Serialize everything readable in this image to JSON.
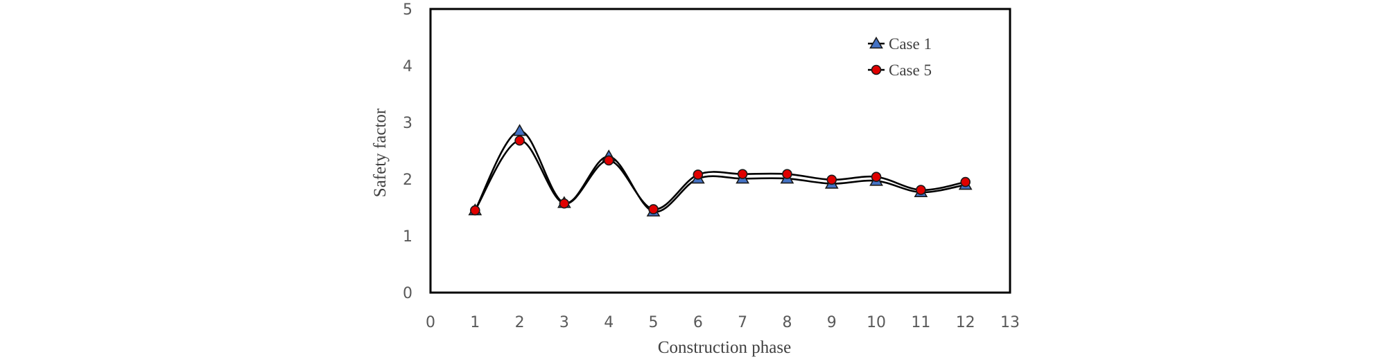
{
  "chart_data": {
    "type": "line",
    "title": "",
    "xlabel": "Construction phase",
    "ylabel": "Safety factor",
    "xlim": [
      0,
      13
    ],
    "ylim": [
      0,
      5
    ],
    "x_ticks": [
      "0",
      "1",
      "2",
      "3",
      "4",
      "5",
      "6",
      "7",
      "8",
      "9",
      "10",
      "11",
      "12",
      "13"
    ],
    "y_ticks": [
      "0",
      "1",
      "2",
      "3",
      "4",
      "5"
    ],
    "grid": false,
    "legend_position": "top-right",
    "x": [
      1,
      2,
      3,
      4,
      5,
      6,
      7,
      8,
      9,
      10,
      11,
      12
    ],
    "series": [
      {
        "name": "Case 1",
        "marker": "triangle",
        "marker_color": "#4472C4",
        "line_color": "#000000",
        "values": [
          1.45,
          2.85,
          1.58,
          2.4,
          1.43,
          2.01,
          2.01,
          2.01,
          1.92,
          1.97,
          1.77,
          1.9
        ]
      },
      {
        "name": "Case 5",
        "marker": "circle",
        "marker_color": "#E00000",
        "line_color": "#000000",
        "values": [
          1.45,
          2.68,
          1.57,
          2.33,
          1.47,
          2.08,
          2.09,
          2.09,
          1.99,
          2.04,
          1.81,
          1.95
        ]
      }
    ]
  }
}
